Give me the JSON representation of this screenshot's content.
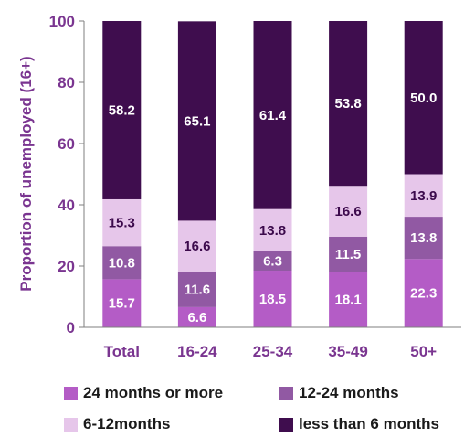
{
  "colors": {
    "axis_text": "#7a3590",
    "axis_line": "#7f7f7f",
    "gridline": "#d9d9d9",
    "series": [
      "#b45cc6",
      "#9159a3",
      "#e6c6ea",
      "#3f0d4e"
    ],
    "label_dark": "#3c0a4c",
    "label_light": "#ffffff"
  },
  "chart_data": {
    "type": "bar",
    "stacked": true,
    "ylabel": "Proportion of unemployed (16+)",
    "xlabel": "",
    "ylim": [
      0,
      100
    ],
    "yticks": [
      0,
      20,
      40,
      60,
      80,
      100
    ],
    "grid": false,
    "legend_position": "bottom",
    "categories": [
      "Total",
      "16-24",
      "25-34",
      "35-49",
      "50+"
    ],
    "series": [
      {
        "name": "24 months or more",
        "values": [
          15.7,
          6.6,
          18.5,
          18.1,
          22.3
        ],
        "labels": [
          "15.7",
          "6.6",
          "18.5",
          "18.1",
          "22.3"
        ]
      },
      {
        "name": "12-24 months",
        "values": [
          10.8,
          11.6,
          6.3,
          11.5,
          13.8
        ],
        "labels": [
          "10.8",
          "11.6",
          "6.3",
          "11.5",
          "13.8"
        ]
      },
      {
        "name": "6-12months",
        "values": [
          15.3,
          16.6,
          13.8,
          16.6,
          13.9
        ],
        "labels": [
          "15.3",
          "16.6",
          "13.8",
          "16.6",
          "13.9"
        ]
      },
      {
        "name": "less than 6 months",
        "values": [
          58.2,
          65.1,
          61.4,
          53.8,
          50.0
        ],
        "labels": [
          "58.2",
          "65.1",
          "61.4",
          "53.8",
          "50.0"
        ]
      }
    ]
  }
}
